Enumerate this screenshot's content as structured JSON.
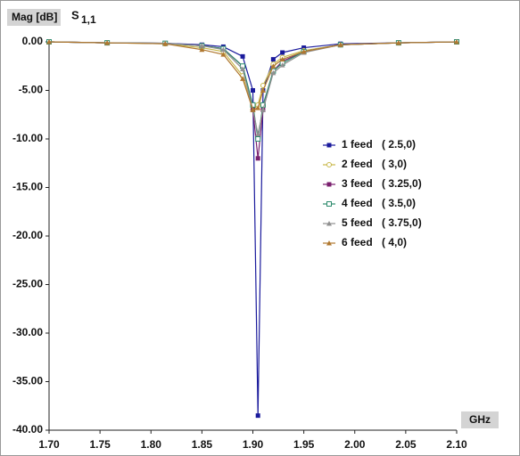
{
  "chart_data": {
    "type": "line",
    "ylabel": "Mag [dB]",
    "parameter": {
      "symbol": "S",
      "subscript": "1,1"
    },
    "xlabel": "GHz",
    "x": [
      1.7,
      1.757,
      1.814,
      1.85,
      1.871,
      1.89,
      1.9,
      1.905,
      1.91,
      1.92,
      1.929,
      1.95,
      1.986,
      2.043,
      2.1
    ],
    "series": [
      {
        "name": "1 feed",
        "coords": "( 2.5,0)",
        "color": "#1a1a9c",
        "marker": "square",
        "values": [
          0,
          -0.1,
          -0.15,
          -0.3,
          -0.5,
          -1.5,
          -5,
          -38.5,
          -5,
          -1.8,
          -1.1,
          -0.6,
          -0.2,
          -0.1,
          0
        ]
      },
      {
        "name": "2 feed",
        "coords": "( 3,0)",
        "color": "#c8b84a",
        "marker": "circle",
        "values": [
          0,
          -0.1,
          -0.2,
          -0.6,
          -1.0,
          -3.5,
          -7,
          -6.5,
          -4.5,
          -2.3,
          -1.6,
          -0.9,
          -0.3,
          -0.1,
          0
        ]
      },
      {
        "name": "3 feed",
        "coords": "( 3.25,0)",
        "color": "#7a1f6e",
        "marker": "square",
        "values": [
          0,
          -0.1,
          -0.15,
          -0.4,
          -0.7,
          -2.5,
          -7,
          -12,
          -7,
          -3,
          -2,
          -1,
          -0.3,
          -0.1,
          0
        ]
      },
      {
        "name": "4 feed",
        "coords": "( 3.5,0)",
        "color": "#2e8b6e",
        "marker": "open-square",
        "values": [
          0,
          -0.1,
          -0.15,
          -0.4,
          -0.7,
          -2.5,
          -6.5,
          -10,
          -6.5,
          -3,
          -2.2,
          -1,
          -0.3,
          -0.1,
          0
        ]
      },
      {
        "name": "5 feed",
        "coords": "( 3.75,0)",
        "color": "#909090",
        "marker": "triangle",
        "values": [
          0,
          -0.1,
          -0.15,
          -0.4,
          -0.8,
          -2.8,
          -7,
          -9.5,
          -7,
          -3.2,
          -2.4,
          -1.1,
          -0.3,
          -0.1,
          0
        ]
      },
      {
        "name": "6 feed",
        "coords": "( 4,0)",
        "color": "#b07830",
        "marker": "triangle",
        "values": [
          0,
          -0.1,
          -0.2,
          -0.8,
          -1.3,
          -3.8,
          -7,
          -6.8,
          -5,
          -2.5,
          -1.8,
          -1,
          -0.3,
          -0.1,
          0
        ]
      }
    ],
    "xlim": [
      1.7,
      2.1
    ],
    "xticks": [
      {
        "value": 1.7,
        "label": "1.70"
      },
      {
        "value": 1.75,
        "label": "1.75"
      },
      {
        "value": 1.8,
        "label": "1.80"
      },
      {
        "value": 1.85,
        "label": "1.85"
      },
      {
        "value": 1.9,
        "label": "1.90"
      },
      {
        "value": 1.95,
        "label": "1.95"
      },
      {
        "value": 2.0,
        "label": "2.00"
      },
      {
        "value": 2.05,
        "label": "2.05"
      },
      {
        "value": 2.1,
        "label": "2.10"
      }
    ],
    "ylim": [
      -40,
      0
    ],
    "yticks": [
      {
        "value": 0,
        "label": "0.00"
      },
      {
        "value": -5,
        "label": "-5.00"
      },
      {
        "value": -10,
        "label": "-10.00"
      },
      {
        "value": -15,
        "label": "-15.00"
      },
      {
        "value": -20,
        "label": "-20.00"
      },
      {
        "value": -25,
        "label": "-25.00"
      },
      {
        "value": -30,
        "label": "-30.00"
      },
      {
        "value": -35,
        "label": "-35.00"
      },
      {
        "value": -40,
        "label": "-40.00"
      }
    ],
    "grid": false
  }
}
